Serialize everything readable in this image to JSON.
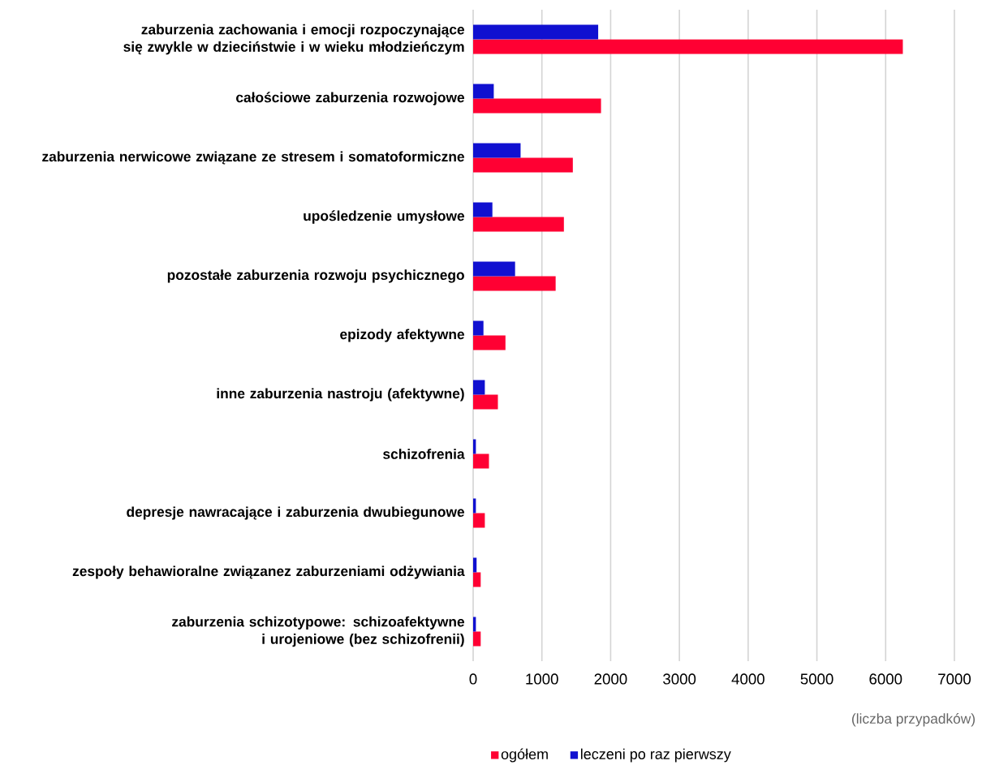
{
  "chart_data": {
    "type": "bar",
    "orientation": "horizontal",
    "categories": [
      "zaburzenia zachowania i emocji rozpoczynające się zwykle w dzieciństwie i w wieku młodzieńczym",
      "całościowe zaburzenia rozwojowe",
      "zaburzenia nerwicowe związane ze stresem i somatoformiczne",
      "upośledzenie umysłowe",
      "pozostałe zaburzenia rozwoju psychicznego",
      "epizody afektywne",
      "inne zaburzenia nastroju (afektywne)",
      "schizofrenia",
      "depresje nawracające i zaburzenia dwubiegunowe",
      "zespoły behawioralne związanez zaburzeniami odżywiania",
      "zaburzenia schizotypowe: schizoafektywne i urojeniowe (bez schizofrenii)"
    ],
    "series": [
      {
        "name": "ogółem",
        "color": "#ff0033",
        "values": [
          6250,
          1860,
          1450,
          1320,
          1200,
          470,
          360,
          230,
          170,
          110,
          110
        ]
      },
      {
        "name": "leczeni po raz pierwszy",
        "color": "#1010d0",
        "values": [
          1820,
          300,
          690,
          280,
          610,
          150,
          170,
          40,
          40,
          50,
          40
        ]
      }
    ],
    "xlim": [
      0,
      7000
    ],
    "xticks": [
      0,
      1000,
      2000,
      3000,
      4000,
      5000,
      6000,
      7000
    ],
    "xlabel": "(liczba przypadków)",
    "grid": "x",
    "legend": "bottom"
  }
}
